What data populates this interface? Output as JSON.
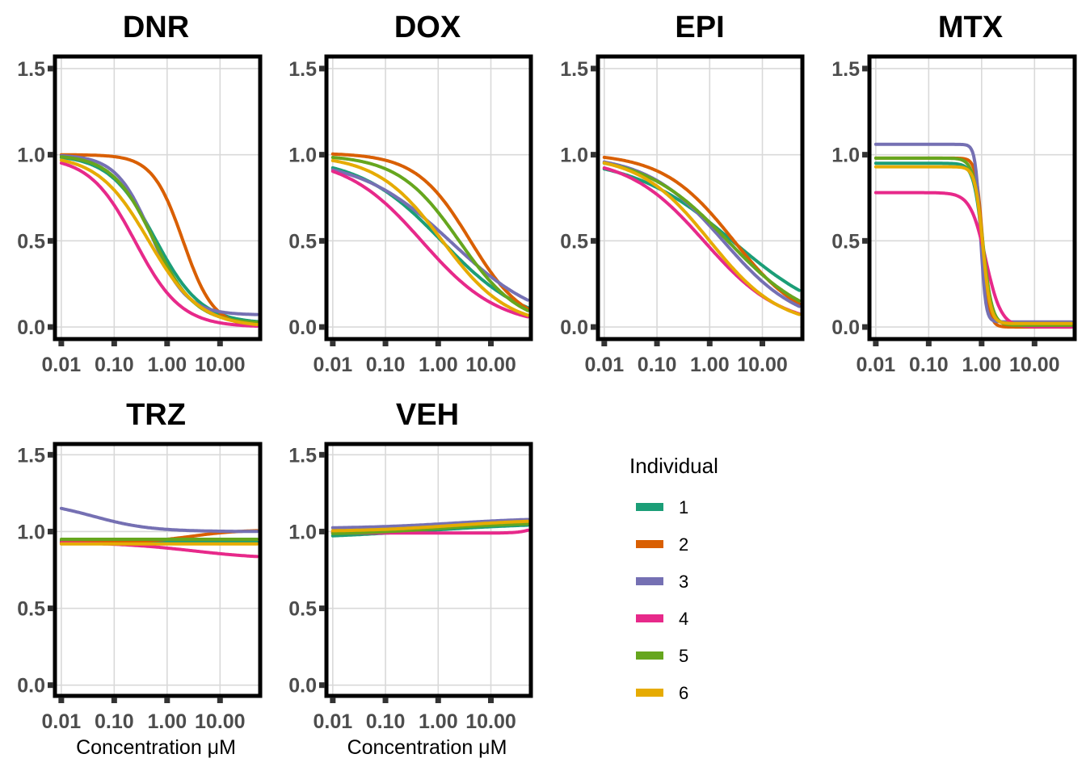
{
  "chart_data": {
    "type": "line",
    "x_scale": "log10",
    "xlim": [
      0.01,
      50
    ],
    "ylim": [
      0,
      1.5
    ],
    "grid": true,
    "legend": {
      "title": "Individual",
      "placement": "right",
      "entries": [
        {
          "label": "1",
          "color": "#1B9E77"
        },
        {
          "label": "2",
          "color": "#D95F02"
        },
        {
          "label": "3",
          "color": "#7570B3"
        },
        {
          "label": "4",
          "color": "#E7298A"
        },
        {
          "label": "5",
          "color": "#66A61E"
        },
        {
          "label": "6",
          "color": "#E6AB02"
        }
      ]
    },
    "y_ticks": [
      "0.0",
      "0.5",
      "1.0",
      "1.5"
    ],
    "y_tick_values": [
      0,
      0.5,
      1.0,
      1.5
    ],
    "x_ticks": [
      "0.01",
      "0.10",
      "1.00",
      "10.00"
    ],
    "x_tick_values": [
      0.01,
      0.1,
      1,
      10
    ],
    "panels": [
      {
        "title": "DNR",
        "xlabel": "",
        "series": [
          {
            "name": "1",
            "top": 1.0,
            "bottom": 0.02,
            "ec50": 0.6,
            "hill": 1.0
          },
          {
            "name": "2",
            "top": 1.0,
            "bottom": 0.0,
            "ec50": 2.0,
            "hill": 1.5
          },
          {
            "name": "3",
            "top": 1.0,
            "bottom": 0.07,
            "ec50": 0.5,
            "hill": 1.3
          },
          {
            "name": "4",
            "top": 0.99,
            "bottom": 0.0,
            "ec50": 0.25,
            "hill": 1.0
          },
          {
            "name": "5",
            "top": 1.0,
            "bottom": 0.02,
            "ec50": 0.55,
            "hill": 1.1
          },
          {
            "name": "6",
            "top": 1.0,
            "bottom": 0.0,
            "ec50": 0.45,
            "hill": 0.9
          }
        ]
      },
      {
        "title": "DOX",
        "xlabel": "",
        "series": [
          {
            "name": "1",
            "top": 0.99,
            "bottom": 0.0,
            "ec50": 1.2,
            "hill": 0.55
          },
          {
            "name": "2",
            "top": 1.01,
            "bottom": 0.0,
            "ec50": 4.0,
            "hill": 0.85
          },
          {
            "name": "3",
            "top": 0.98,
            "bottom": 0.0,
            "ec50": 1.8,
            "hill": 0.5
          },
          {
            "name": "4",
            "top": 0.99,
            "bottom": 0.0,
            "ec50": 0.5,
            "hill": 0.6
          },
          {
            "name": "5",
            "top": 1.0,
            "bottom": 0.0,
            "ec50": 2.5,
            "hill": 0.75
          },
          {
            "name": "6",
            "top": 1.0,
            "bottom": 0.0,
            "ec50": 1.2,
            "hill": 0.7
          }
        ]
      },
      {
        "title": "EPI",
        "xlabel": "",
        "series": [
          {
            "name": "1",
            "top": 0.99,
            "bottom": 0.0,
            "ec50": 2.8,
            "hill": 0.45
          },
          {
            "name": "2",
            "top": 1.01,
            "bottom": 0.0,
            "ec50": 2.8,
            "hill": 0.65
          },
          {
            "name": "3",
            "top": 1.0,
            "bottom": 0.0,
            "ec50": 1.8,
            "hill": 0.6
          },
          {
            "name": "4",
            "top": 0.99,
            "bottom": 0.0,
            "ec50": 0.8,
            "hill": 0.6
          },
          {
            "name": "5",
            "top": 1.0,
            "bottom": 0.0,
            "ec50": 2.2,
            "hill": 0.55
          },
          {
            "name": "6",
            "top": 1.0,
            "bottom": 0.0,
            "ec50": 1.0,
            "hill": 0.65
          }
        ]
      },
      {
        "title": "MTX",
        "xlabel": "",
        "series": [
          {
            "name": "1",
            "top": 0.95,
            "bottom": 0.01,
            "ec50": 1.05,
            "hill": 5
          },
          {
            "name": "2",
            "top": 0.98,
            "bottom": 0.0,
            "ec50": 1.05,
            "hill": 7
          },
          {
            "name": "3",
            "top": 1.06,
            "bottom": 0.03,
            "ec50": 0.95,
            "hill": 9
          },
          {
            "name": "4",
            "top": 0.78,
            "bottom": 0.0,
            "ec50": 1.2,
            "hill": 3
          },
          {
            "name": "5",
            "top": 0.98,
            "bottom": 0.01,
            "ec50": 1.05,
            "hill": 5
          },
          {
            "name": "6",
            "top": 0.93,
            "bottom": 0.02,
            "ec50": 1.05,
            "hill": 6
          }
        ]
      },
      {
        "title": "TRZ",
        "xlabel": "Concentration μM",
        "series": [
          {
            "name": "1",
            "top": 0.94,
            "bottom": 0.93,
            "ec50": 1.0,
            "hill": 1
          },
          {
            "name": "2",
            "top": 0.93,
            "bottom": 1.01,
            "ec50": 3.0,
            "hill": 1
          },
          {
            "name": "3",
            "top": 1.2,
            "bottom": 1.0,
            "ec50": 0.04,
            "hill": 0.8
          },
          {
            "name": "4",
            "top": 0.93,
            "bottom": 0.82,
            "ec50": 3.0,
            "hill": 0.6
          },
          {
            "name": "5",
            "top": 0.95,
            "bottom": 0.95,
            "ec50": 1.0,
            "hill": 1
          },
          {
            "name": "6",
            "top": 0.92,
            "bottom": 0.92,
            "ec50": 1.0,
            "hill": 1
          }
        ]
      },
      {
        "title": "VEH",
        "xlabel": "Concentration μM",
        "series": [
          {
            "name": "1",
            "top": 0.95,
            "bottom": 1.06,
            "ec50": 0.5,
            "hill": 0.35
          },
          {
            "name": "2",
            "top": 0.99,
            "bottom": 1.09,
            "ec50": 2.0,
            "hill": 0.5
          },
          {
            "name": "3",
            "top": 1.02,
            "bottom": 1.09,
            "ec50": 2.0,
            "hill": 0.5
          },
          {
            "name": "4",
            "top": 0.99,
            "bottom": 1.3,
            "ec50": 150,
            "hill": 2.5
          },
          {
            "name": "5",
            "top": 0.98,
            "bottom": 1.06,
            "ec50": 1.0,
            "hill": 0.5
          },
          {
            "name": "6",
            "top": 1.0,
            "bottom": 1.08,
            "ec50": 2.0,
            "hill": 0.5
          }
        ]
      }
    ]
  }
}
